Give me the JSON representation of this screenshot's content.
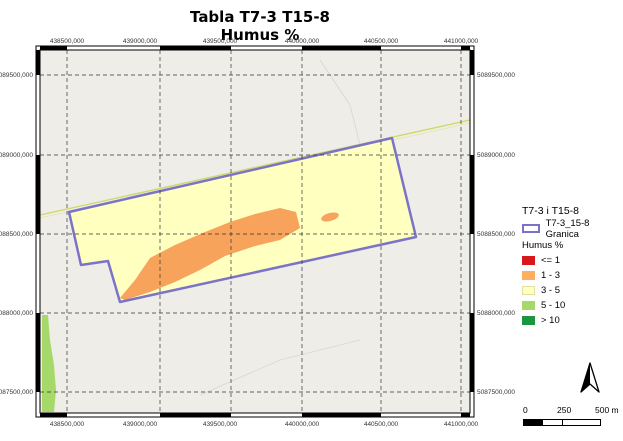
{
  "title": {
    "line1": "Tabla T7-3 T15-8",
    "line2": "Humus %"
  },
  "map": {
    "x_ticks": [
      "438500,000",
      "439000,000",
      "439500,000",
      "440000,000",
      "440500,000",
      "441000,000"
    ],
    "y_ticks": [
      "5089500,000",
      "5089000,000",
      "5088500,000",
      "5088000,000",
      "5087500,000"
    ]
  },
  "legend": {
    "group1_title": "T7-3 i T15-8",
    "boundary_label": "T7-3_15-8 Granica",
    "boundary_color": "#7b73c8",
    "humus_title": "Humus %",
    "classes": [
      {
        "label": "<= 1",
        "color": "#d7191c"
      },
      {
        "label": "1 - 3",
        "color": "#fdae61"
      },
      {
        "label": "3 - 5",
        "color": "#ffffc0"
      },
      {
        "label": "5 - 10",
        "color": "#a6d96a"
      },
      {
        "label": "> 10",
        "color": "#1a9641"
      }
    ]
  },
  "scalebar": {
    "label_0": "0",
    "label_250": "250",
    "label_500": "500 m"
  },
  "north_arrow": {
    "icon": "north-arrow-icon"
  }
}
